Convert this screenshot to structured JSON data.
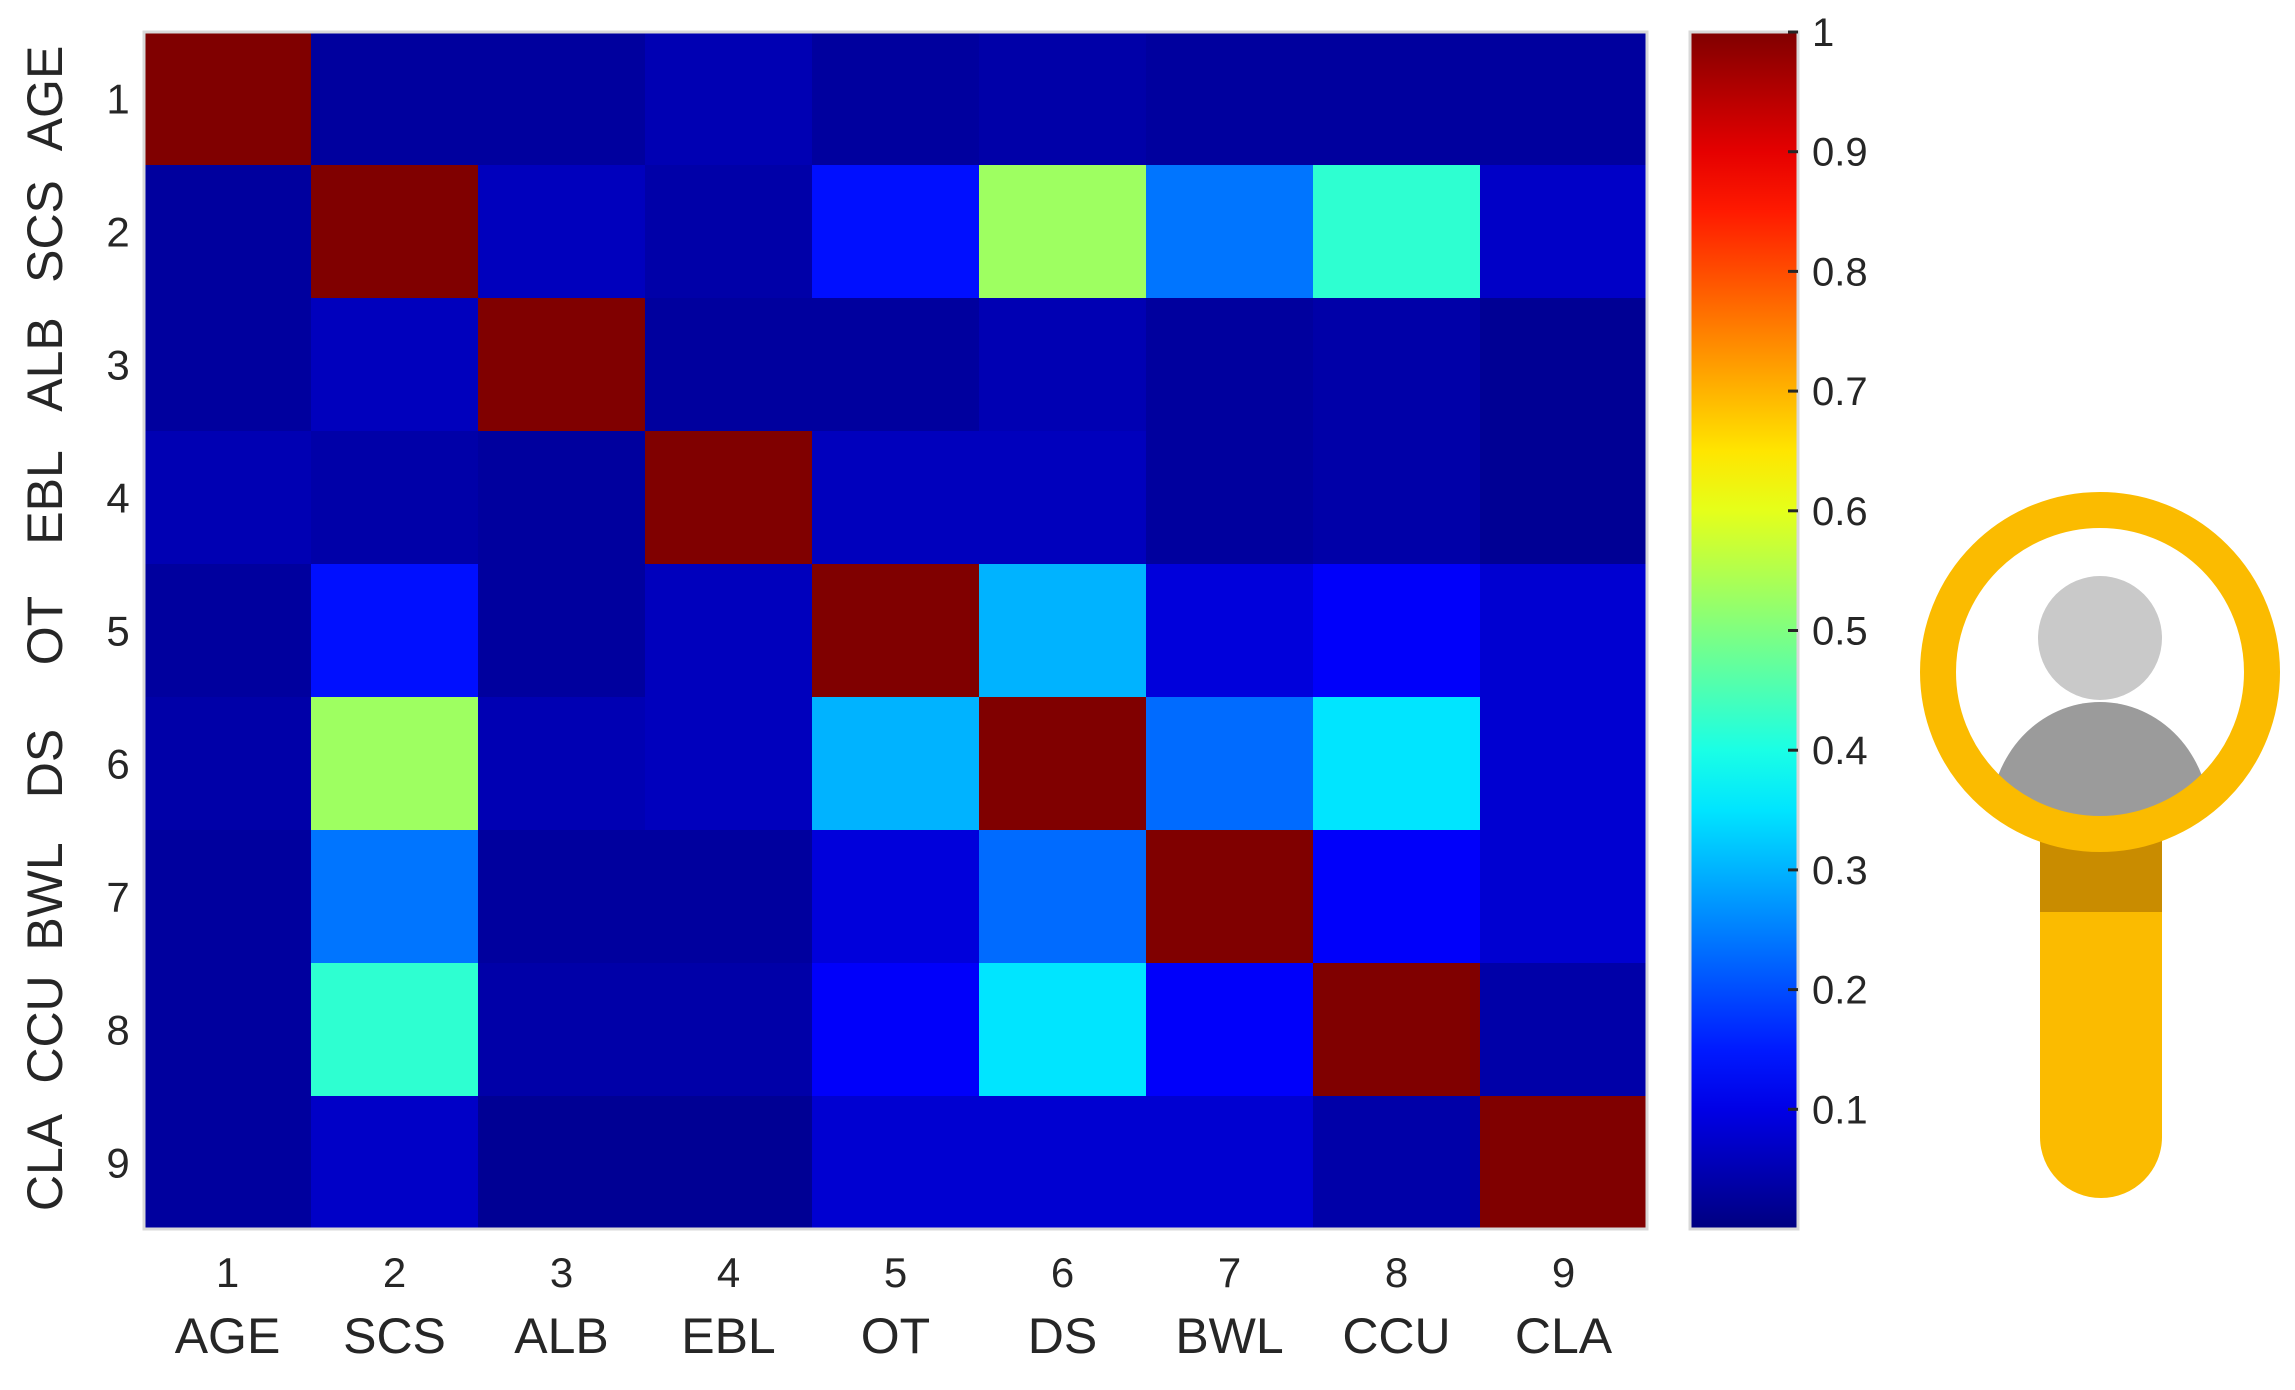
{
  "chart_data": {
    "type": "heatmap",
    "title": "",
    "x_tick_numbers": [
      "1",
      "2",
      "3",
      "4",
      "5",
      "6",
      "7",
      "8",
      "9"
    ],
    "x_tick_names": [
      "AGE",
      "SCS",
      "ALB",
      "EBL",
      "OT",
      "DS",
      "BWL",
      "CCU",
      "CLA"
    ],
    "y_tick_numbers": [
      "1",
      "2",
      "3",
      "4",
      "5",
      "6",
      "7",
      "8",
      "9"
    ],
    "y_tick_names": [
      "AGE",
      "SCS",
      "ALB",
      "EBL",
      "OT",
      "DS",
      "BWL",
      "CCU",
      "CLA"
    ],
    "matrix": [
      [
        1.0,
        0.03,
        0.03,
        0.05,
        0.03,
        0.04,
        0.03,
        0.03,
        0.03
      ],
      [
        0.03,
        1.0,
        0.06,
        0.04,
        0.14,
        0.53,
        0.24,
        0.42,
        0.07
      ],
      [
        0.03,
        0.06,
        1.0,
        0.03,
        0.03,
        0.05,
        0.03,
        0.04,
        0.02
      ],
      [
        0.05,
        0.04,
        0.03,
        1.0,
        0.06,
        0.06,
        0.03,
        0.04,
        0.02
      ],
      [
        0.03,
        0.14,
        0.03,
        0.06,
        1.0,
        0.3,
        0.09,
        0.12,
        0.08
      ],
      [
        0.04,
        0.53,
        0.05,
        0.06,
        0.3,
        1.0,
        0.23,
        0.35,
        0.08
      ],
      [
        0.03,
        0.24,
        0.03,
        0.03,
        0.09,
        0.23,
        1.0,
        0.12,
        0.08
      ],
      [
        0.03,
        0.42,
        0.04,
        0.04,
        0.12,
        0.35,
        0.12,
        1.0,
        0.04
      ],
      [
        0.03,
        0.07,
        0.02,
        0.02,
        0.08,
        0.08,
        0.08,
        0.04,
        1.0
      ]
    ],
    "colormap": "jet",
    "colorbar": {
      "ticks": [
        "0.1",
        "0.2",
        "0.3",
        "0.4",
        "0.5",
        "0.6",
        "0.7",
        "0.8",
        "0.9",
        "1"
      ],
      "tick_values": [
        0.1,
        0.2,
        0.3,
        0.4,
        0.5,
        0.6,
        0.7,
        0.8,
        0.9,
        1.0
      ],
      "range": [
        0,
        1
      ]
    },
    "grid": false
  },
  "decoration": {
    "icon": "magnifying-glass-person-icon",
    "colors": {
      "ring": "#fbbb00",
      "ring_dark": "#c98c00",
      "head": "#c9c9c9",
      "body": "#9b9b9b"
    }
  }
}
